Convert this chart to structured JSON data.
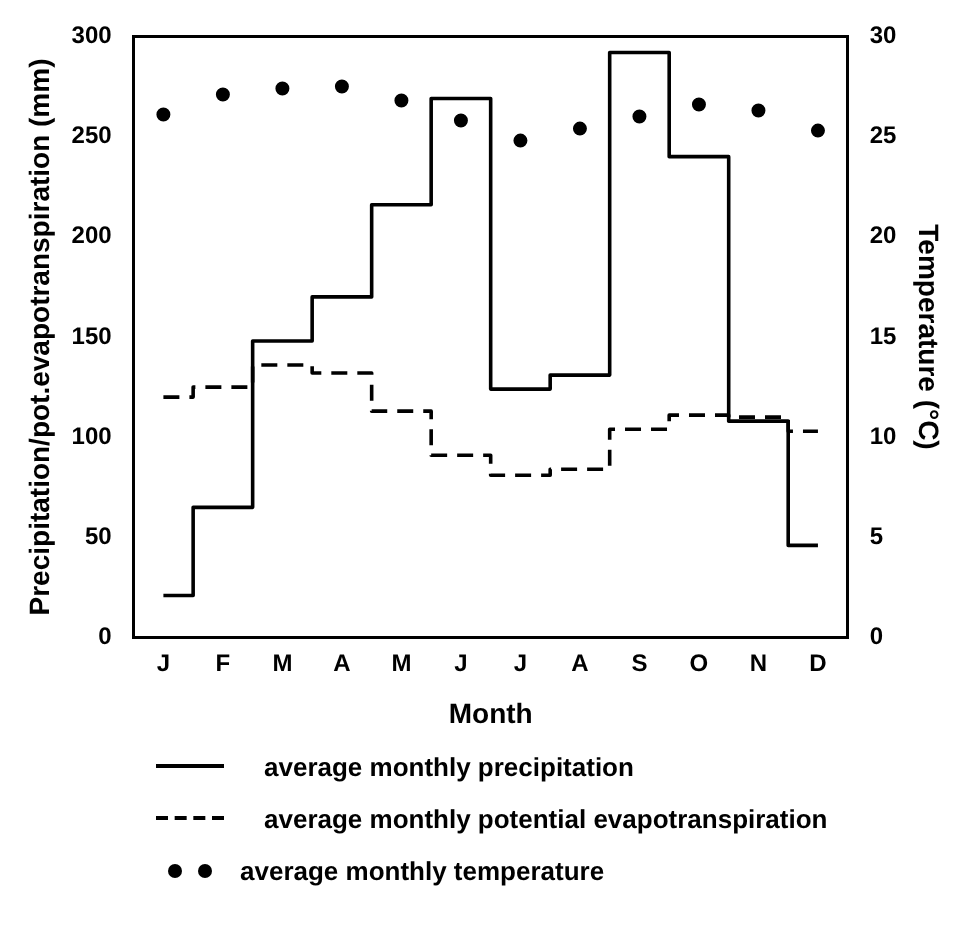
{
  "chart_data": {
    "type": "step",
    "xlabel": "Month",
    "ylabel": "Precipitation/pot.evapotranspiration (mm)",
    "y2label": "Temperature (°C)",
    "categories": [
      "J",
      "F",
      "M",
      "A",
      "M",
      "J",
      "J",
      "A",
      "S",
      "O",
      "N",
      "D"
    ],
    "series": [
      {
        "name": "average monthly precipitation",
        "type": "step",
        "line_style": "solid",
        "color": "#000000",
        "values": [
          21,
          65,
          148,
          170,
          216,
          269,
          124,
          131,
          292,
          240,
          108,
          46
        ]
      },
      {
        "name": "average monthly potential evapotranspiration",
        "type": "step",
        "line_style": "dashed",
        "color": "#000000",
        "values": [
          120,
          125,
          136,
          132,
          113,
          91,
          81,
          84,
          104,
          111,
          110,
          103
        ]
      },
      {
        "name": "average monthly temperature",
        "type": "scatter",
        "axis": "y2",
        "marker": "circle",
        "color": "#000000",
        "values": [
          26.1,
          27.1,
          27.4,
          27.5,
          26.8,
          25.8,
          24.8,
          25.4,
          26.0,
          26.6,
          26.3,
          25.3
        ]
      }
    ],
    "ylim": [
      0,
      300
    ],
    "yticks": [
      0,
      50,
      100,
      150,
      200,
      250,
      300
    ],
    "y2lim": [
      0,
      30
    ],
    "y2ticks": [
      0,
      5,
      10,
      15,
      20,
      25,
      30
    ],
    "grid": false,
    "legend": "bottom"
  }
}
